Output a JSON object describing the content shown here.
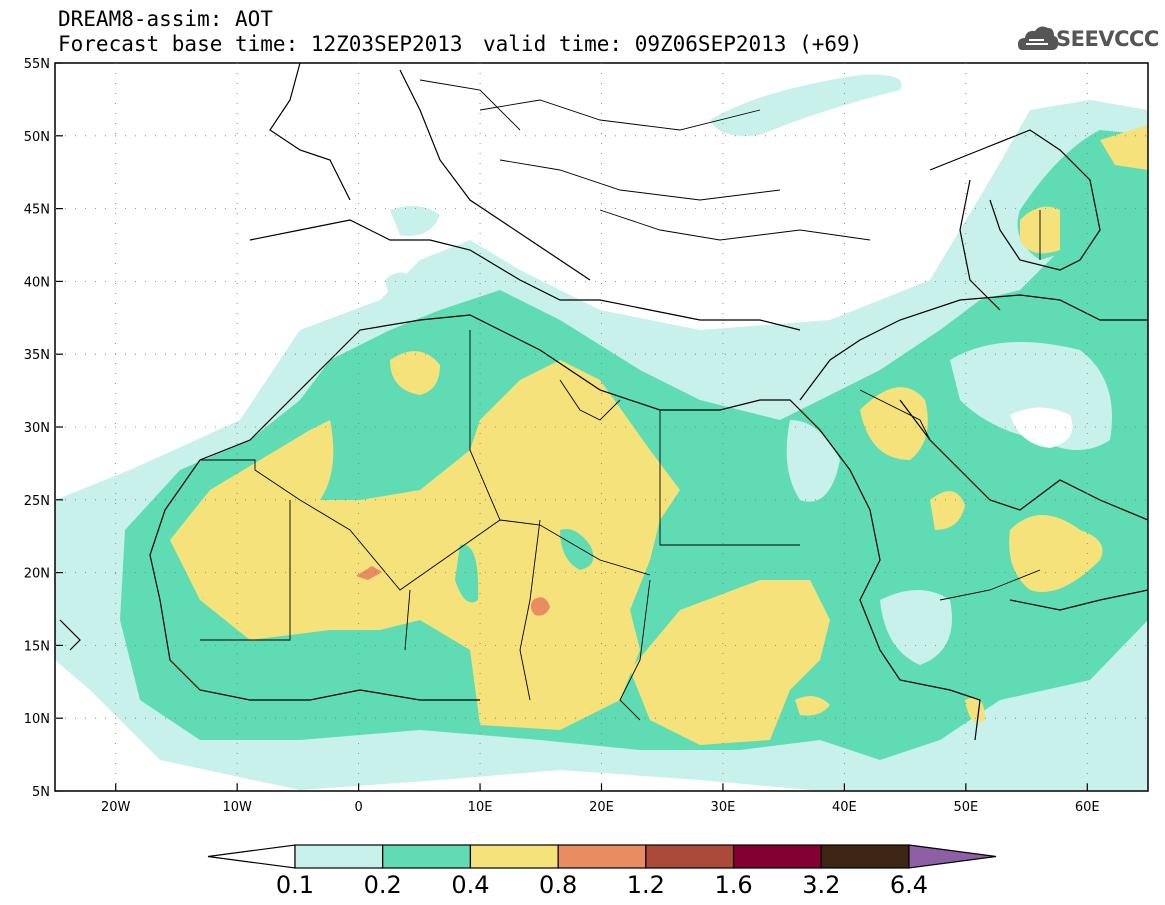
{
  "header": {
    "title": "DREAM8-assim: AOT",
    "base_time": "Forecast base time: 12Z03SEP2013",
    "valid_time": "valid time: 09Z06SEP2013 (+69)"
  },
  "logo": {
    "text": "SEEVCCC",
    "icon": "cloud-icon"
  },
  "map": {
    "lon_range": [
      -25,
      65
    ],
    "lat_range": [
      5,
      55
    ],
    "lat_labels": [
      "55N",
      "50N",
      "45N",
      "40N",
      "35N",
      "30N",
      "25N",
      "20N",
      "15N",
      "10N",
      "5N"
    ],
    "lon_labels": [
      "20W",
      "10W",
      "0",
      "10E",
      "20E",
      "30E",
      "40E",
      "50E",
      "60E"
    ]
  },
  "colorbar": {
    "labels": [
      "0.1",
      "0.2",
      "0.4",
      "0.8",
      "1.2",
      "1.6",
      "3.2",
      "6.4"
    ],
    "colors": [
      "#ffffff",
      "#c7f1ea",
      "#5fdcb4",
      "#f5e27a",
      "#e98c62",
      "#ab4a3a",
      "#820032",
      "#3c2613",
      "#8f5fa5"
    ]
  },
  "colors": {
    "level_0_1": "#c7f1ea",
    "level_0_2": "#5fdcb4",
    "level_0_4": "#f5e27a",
    "level_0_8": "#e98c62"
  }
}
